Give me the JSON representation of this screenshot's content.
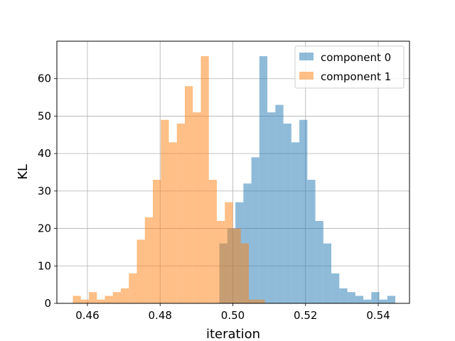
{
  "chart_data": {
    "type": "bar",
    "xlabel": "iteration",
    "ylabel": "KL",
    "xlim": [
      0.4516,
      0.5486
    ],
    "ylim": [
      0,
      70
    ],
    "grid": true,
    "legend_position": "top-right",
    "xticks": [
      {
        "value": 0.46,
        "label": "0.46"
      },
      {
        "value": 0.48,
        "label": "0.48"
      },
      {
        "value": 0.5,
        "label": "0.50"
      },
      {
        "value": 0.52,
        "label": "0.52"
      },
      {
        "value": 0.54,
        "label": "0.54"
      }
    ],
    "yticks": [
      {
        "value": 0,
        "label": "0"
      },
      {
        "value": 10,
        "label": "10"
      },
      {
        "value": 20,
        "label": "20"
      },
      {
        "value": 30,
        "label": "30"
      },
      {
        "value": 40,
        "label": "40"
      },
      {
        "value": 50,
        "label": "50"
      },
      {
        "value": 60,
        "label": "60"
      }
    ],
    "series": [
      {
        "name": "component 0",
        "color": "#1f77b4",
        "opacity": 0.5,
        "bin_start": 0.4963,
        "bin_width": 0.0022,
        "values": [
          16,
          20,
          27,
          32,
          39,
          66,
          51,
          53,
          48,
          43,
          49,
          33,
          22,
          16,
          8,
          4,
          3,
          2,
          1,
          3,
          1,
          2
        ]
      },
      {
        "name": "component 1",
        "color": "#ff7f0e",
        "opacity": 0.5,
        "bin_start": 0.456,
        "bin_width": 0.0022,
        "values": [
          2,
          1,
          3,
          1,
          2,
          3,
          4,
          8,
          17,
          23,
          33,
          49,
          43,
          48,
          58,
          51,
          66,
          33,
          22,
          27,
          20,
          16,
          1,
          1
        ]
      }
    ]
  }
}
